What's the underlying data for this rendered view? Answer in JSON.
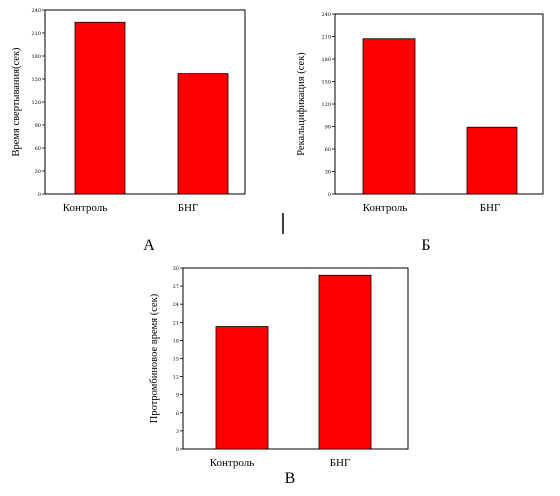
{
  "chart_data": [
    {
      "type": "bar",
      "panel_label": "А",
      "ylabel": "Время свертывания(сек)",
      "categories": [
        "Контроль",
        "БНГ"
      ],
      "values": [
        224,
        157
      ],
      "ylim": [
        0,
        240
      ],
      "yticks": [
        0,
        30,
        60,
        90,
        120,
        150,
        180,
        210,
        240
      ],
      "bar_color": "#FF0000"
    },
    {
      "type": "bar",
      "panel_label": "Б",
      "ylabel": "Рекальцификация (сек)",
      "categories": [
        "Контроль",
        "БНГ"
      ],
      "values": [
        207,
        89
      ],
      "ylim": [
        0,
        240
      ],
      "yticks": [
        0,
        30,
        60,
        90,
        120,
        150,
        180,
        210,
        240
      ],
      "bar_color": "#FF0000"
    },
    {
      "type": "bar",
      "panel_label": "В",
      "ylabel": "Протромбиновое время (сек)",
      "categories": [
        "Контроль",
        "БНГ"
      ],
      "values": [
        20.3,
        28.8
      ],
      "ylim": [
        0,
        30
      ],
      "yticks": [
        0,
        3,
        6,
        9,
        12,
        15,
        18,
        21,
        24,
        27,
        30
      ],
      "bar_color": "#FF0000"
    }
  ]
}
